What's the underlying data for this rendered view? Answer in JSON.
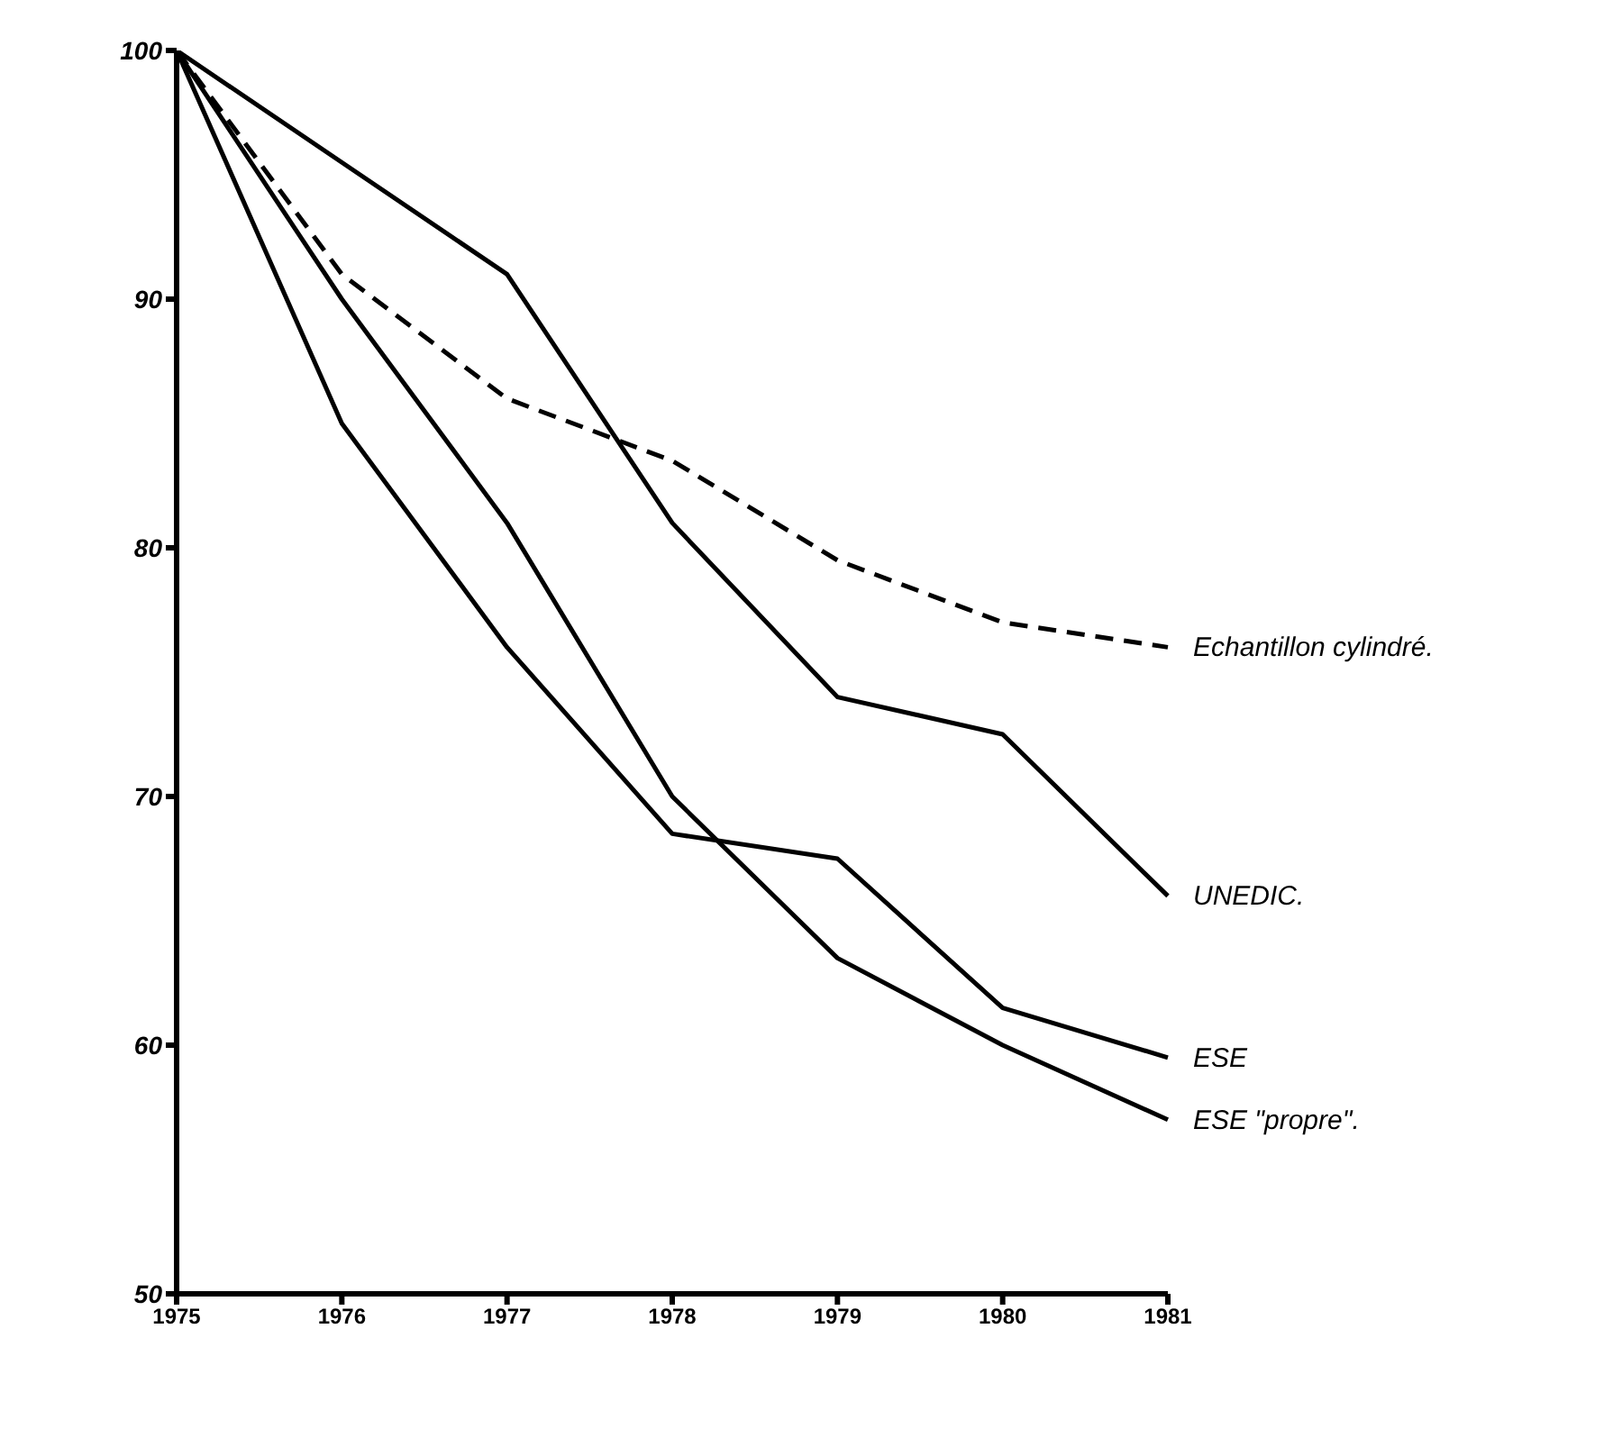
{
  "chart_data": {
    "type": "line",
    "categories": [
      "1975",
      "1976",
      "1977",
      "1978",
      "1979",
      "1980",
      "1981"
    ],
    "series": [
      {
        "name": "Echantillon cylindré.",
        "color": "#000000",
        "line_style": "dashed",
        "values": [
          100,
          91,
          86,
          83.5,
          79.5,
          77,
          76
        ]
      },
      {
        "name": "UNEDIC.",
        "color": "#000000",
        "line_style": "solid",
        "values": [
          100,
          95.5,
          91,
          81,
          74,
          72.5,
          66
        ]
      },
      {
        "name": "ESE",
        "color": "#000000",
        "line_style": "solid",
        "values": [
          100,
          85,
          76,
          68.5,
          67.5,
          61.5,
          59.5
        ]
      },
      {
        "name": "ESE \"propre\".",
        "color": "#000000",
        "line_style": "solid",
        "values": [
          100,
          90,
          81,
          70,
          63.5,
          60,
          57
        ]
      }
    ],
    "ylim": [
      50,
      100
    ],
    "yticks": [
      50,
      60,
      70,
      80,
      90,
      100
    ],
    "grid": false,
    "legend": false,
    "marker": "none"
  }
}
